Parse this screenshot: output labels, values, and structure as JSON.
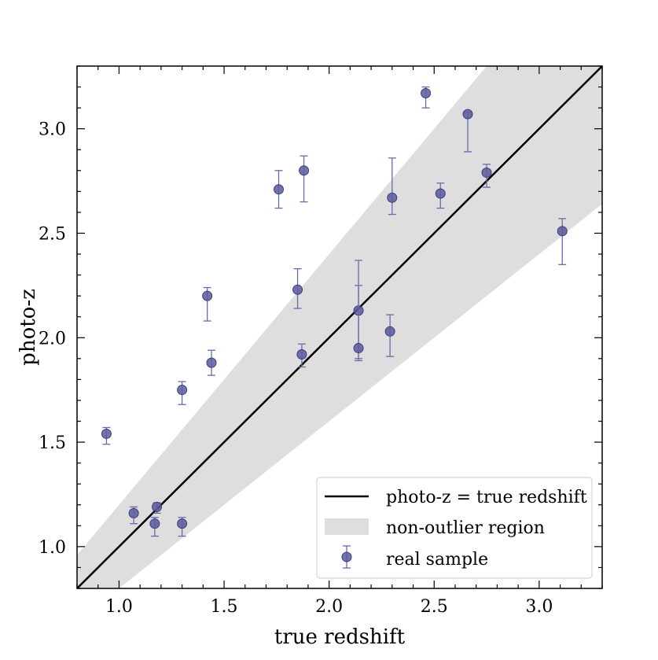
{
  "chart_data": {
    "type": "scatter",
    "xlabel": "true redshift",
    "ylabel": "photo-z",
    "xlim": [
      0.8,
      3.3
    ],
    "ylim": [
      0.8,
      3.3
    ],
    "x_ticks": [
      1.0,
      1.5,
      2.0,
      2.5,
      3.0
    ],
    "y_ticks": [
      1.0,
      1.5,
      2.0,
      2.5,
      3.0
    ],
    "x_tick_labels": [
      "1.0",
      "1.5",
      "2.0",
      "2.5",
      "3.0"
    ],
    "y_tick_labels": [
      "1.0",
      "1.5",
      "2.0",
      "2.5",
      "3.0"
    ],
    "minor_tick_step": 0.1,
    "grid": false,
    "legend_position": "bottom-right",
    "colors": {
      "point_fill": "#5b5b9e",
      "point_edge": "#3c3c7e",
      "errorbar": "#6a6aaa",
      "band": "#dedede",
      "line": "#000000"
    },
    "identity_line": {
      "label": "photo-z = true redshift"
    },
    "band": {
      "label": "non-outlier region",
      "relative_half_width": 0.2
    },
    "series": [
      {
        "name": "real sample",
        "points": [
          {
            "x": 0.94,
            "y": 1.54,
            "y_low": 1.49,
            "y_high": 1.57
          },
          {
            "x": 1.07,
            "y": 1.16,
            "y_low": 1.11,
            "y_high": 1.19
          },
          {
            "x": 1.17,
            "y": 1.11,
            "y_low": 1.05,
            "y_high": 1.14
          },
          {
            "x": 1.18,
            "y": 1.19,
            "y_low": 1.16,
            "y_high": 1.21
          },
          {
            "x": 1.3,
            "y": 1.11,
            "y_low": 1.05,
            "y_high": 1.14
          },
          {
            "x": 1.3,
            "y": 1.75,
            "y_low": 1.68,
            "y_high": 1.79
          },
          {
            "x": 1.42,
            "y": 2.2,
            "y_low": 2.08,
            "y_high": 2.24
          },
          {
            "x": 1.44,
            "y": 1.88,
            "y_low": 1.82,
            "y_high": 1.94
          },
          {
            "x": 1.76,
            "y": 2.71,
            "y_low": 2.62,
            "y_high": 2.8
          },
          {
            "x": 1.85,
            "y": 2.23,
            "y_low": 2.14,
            "y_high": 2.33
          },
          {
            "x": 1.87,
            "y": 1.92,
            "y_low": 1.86,
            "y_high": 1.97
          },
          {
            "x": 1.88,
            "y": 2.8,
            "y_low": 2.65,
            "y_high": 2.87
          },
          {
            "x": 2.14,
            "y": 2.13,
            "y_low": 1.9,
            "y_high": 2.37
          },
          {
            "x": 2.14,
            "y": 1.95,
            "y_low": 1.89,
            "y_high": 2.25
          },
          {
            "x": 2.29,
            "y": 2.03,
            "y_low": 1.91,
            "y_high": 2.11
          },
          {
            "x": 2.3,
            "y": 2.67,
            "y_low": 2.59,
            "y_high": 2.86
          },
          {
            "x": 2.46,
            "y": 3.17,
            "y_low": 3.1,
            "y_high": 3.2
          },
          {
            "x": 2.53,
            "y": 2.69,
            "y_low": 2.62,
            "y_high": 2.74
          },
          {
            "x": 2.66,
            "y": 3.07,
            "y_low": 2.89,
            "y_high": 3.08
          },
          {
            "x": 2.75,
            "y": 2.79,
            "y_low": 2.72,
            "y_high": 2.83
          },
          {
            "x": 3.11,
            "y": 2.51,
            "y_low": 2.35,
            "y_high": 2.57
          }
        ]
      }
    ]
  }
}
